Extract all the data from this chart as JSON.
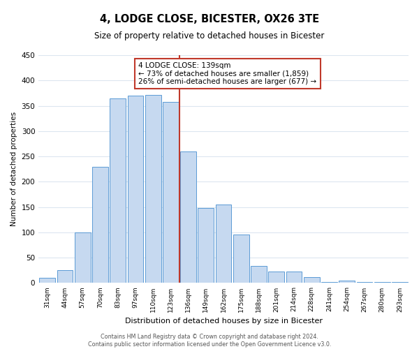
{
  "title": "4, LODGE CLOSE, BICESTER, OX26 3TE",
  "subtitle": "Size of property relative to detached houses in Bicester",
  "xlabel": "Distribution of detached houses by size in Bicester",
  "ylabel": "Number of detached properties",
  "categories": [
    "31sqm",
    "44sqm",
    "57sqm",
    "70sqm",
    "83sqm",
    "97sqm",
    "110sqm",
    "123sqm",
    "136sqm",
    "149sqm",
    "162sqm",
    "175sqm",
    "188sqm",
    "201sqm",
    "214sqm",
    "228sqm",
    "241sqm",
    "254sqm",
    "267sqm",
    "280sqm",
    "293sqm"
  ],
  "bar_values": [
    10,
    25,
    100,
    230,
    365,
    370,
    372,
    357,
    260,
    148,
    155,
    96,
    34,
    22,
    22,
    11,
    2,
    5,
    2,
    2,
    2
  ],
  "bar_color": "#c6d9f0",
  "bar_edge_color": "#5b9bd5",
  "reference_line_x": 7.5,
  "reference_line_color": "#c0392b",
  "annotation_title": "4 LODGE CLOSE: 139sqm",
  "annotation_line1": "← 73% of detached houses are smaller (1,859)",
  "annotation_line2": "26% of semi-detached houses are larger (677) →",
  "box_edge_color": "#c0392b",
  "ylim": [
    0,
    450
  ],
  "yticks": [
    0,
    50,
    100,
    150,
    200,
    250,
    300,
    350,
    400,
    450
  ],
  "footer_line1": "Contains HM Land Registry data © Crown copyright and database right 2024.",
  "footer_line2": "Contains public sector information licensed under the Open Government Licence v3.0.",
  "bg_color": "#ffffff",
  "grid_color": "#dce6f0"
}
